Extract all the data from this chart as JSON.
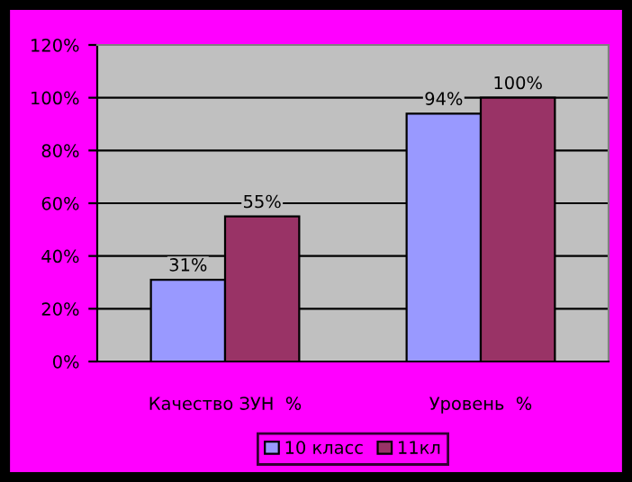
{
  "chart_data": {
    "type": "bar",
    "categories": [
      "Качество ЗУН  %",
      "Уровень  %"
    ],
    "series": [
      {
        "name": "10 класс",
        "color": "#9999ff",
        "values": [
          31,
          94
        ],
        "value_labels": [
          "31%",
          "94%"
        ]
      },
      {
        "name": "11кл",
        "color": "#993366",
        "values": [
          55,
          100
        ],
        "value_labels": [
          "55%",
          "100%"
        ]
      }
    ],
    "ylim": [
      0,
      120
    ],
    "yticks": [
      {
        "value": 0,
        "label": "0%"
      },
      {
        "value": 20,
        "label": "20%"
      },
      {
        "value": 40,
        "label": "40%"
      },
      {
        "value": 60,
        "label": "60%"
      },
      {
        "value": 80,
        "label": "80%"
      },
      {
        "value": 100,
        "label": "100%"
      },
      {
        "value": 120,
        "label": "120%"
      }
    ],
    "grid": "y",
    "legend": "bottom"
  }
}
